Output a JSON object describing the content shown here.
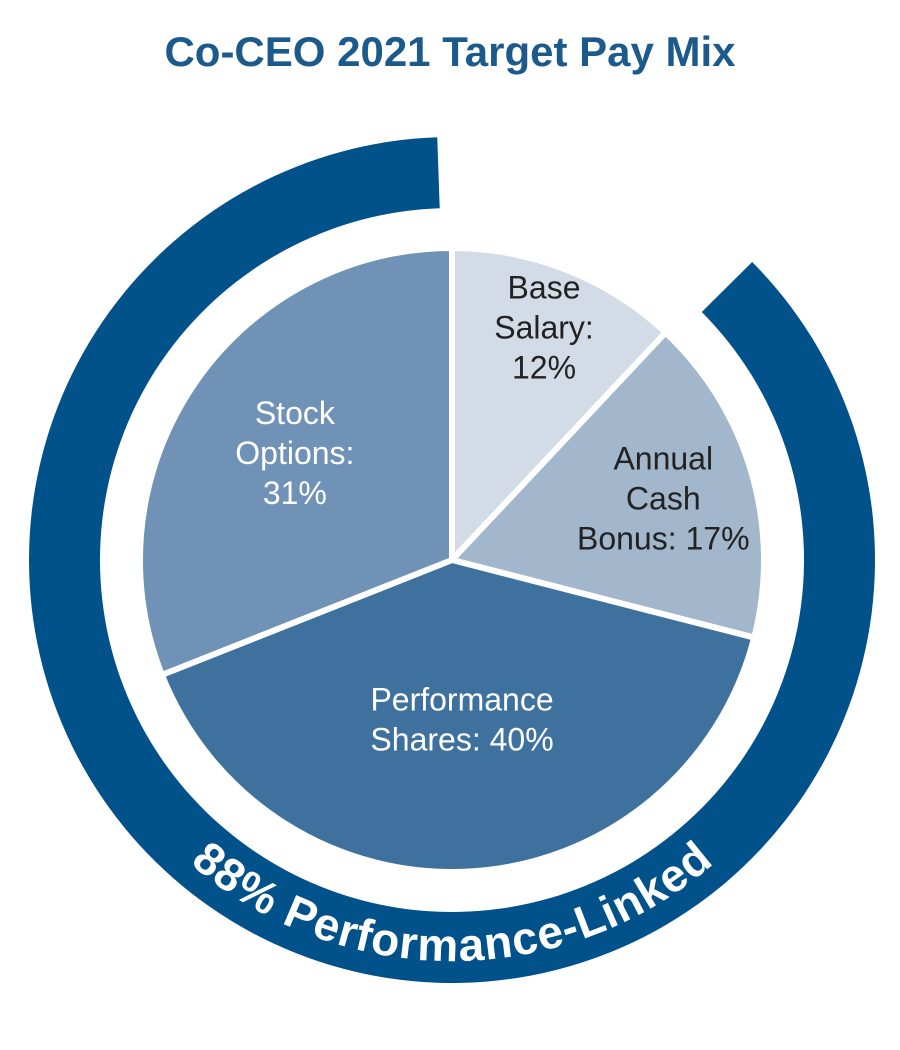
{
  "chart_data": {
    "type": "pie",
    "title": "Co-CEO 2021 Target Pay Mix",
    "slices": [
      {
        "label_lines": [
          "Base",
          "Salary:",
          "12%"
        ],
        "value": 12,
        "color": "#d3dbe6",
        "text_color": "#222222"
      },
      {
        "label_lines": [
          "Annual",
          "Cash",
          "Bonus: 17%"
        ],
        "value": 17,
        "color": "#a2b6cc",
        "text_color": "#222222"
      },
      {
        "label_lines": [
          "Performance",
          "Shares: 40%"
        ],
        "value": 40,
        "color": "#3f719e",
        "text_color": "#ffffff"
      },
      {
        "label_lines": [
          "Stock",
          "Options:",
          "31%"
        ],
        "value": 31,
        "color": "#7092b6",
        "text_color": "#ffffff"
      }
    ],
    "ring": {
      "label": "88% Performance-Linked",
      "value": 88,
      "color": "#01518a"
    }
  }
}
